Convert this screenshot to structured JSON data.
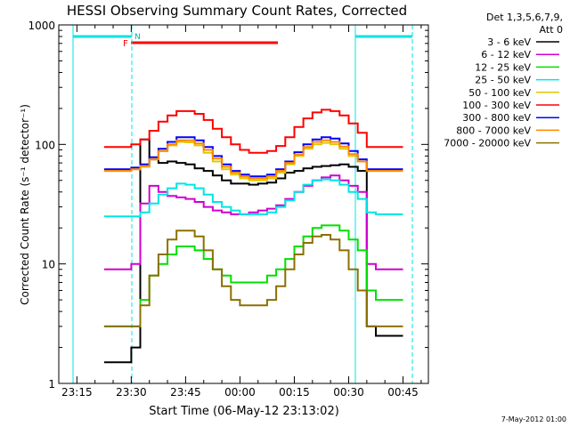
{
  "chart_data": {
    "type": "line",
    "title": "HESSI Observing Summary Count Rates, Corrected",
    "xlabel": "Start Time (06-May-12 23:13:02)",
    "ylabel": "Corrected Count Rate (s⁻¹ detector⁻¹)",
    "y_scale": "log",
    "ylim": [
      1,
      1000
    ],
    "xlim_minutes_after_2315": [
      -5,
      97
    ],
    "x_ticks": [
      "23:15",
      "23:30",
      "23:45",
      "00:00",
      "00:15",
      "00:30",
      "00:45"
    ],
    "y_ticks": [
      "1",
      "10",
      "100",
      "1000"
    ],
    "legend_header": [
      "Det 1,3,5,6,7,9,",
      "Att 0"
    ],
    "footer": "7-May-2012 01:00",
    "flags": {
      "F_label": "F",
      "N_label": "N"
    },
    "x_minutes": [
      7.5,
      10,
      12.5,
      15,
      17.5,
      20,
      22.5,
      25,
      27.5,
      30,
      32.5,
      35,
      37.5,
      40,
      42.5,
      45,
      47.5,
      50,
      52.5,
      55,
      57.5,
      60,
      62.5,
      65,
      67.5,
      70,
      72.5,
      75,
      77.5,
      80,
      82.5,
      85,
      87.5,
      90
    ],
    "series": [
      {
        "name": "3 - 6 keV",
        "color": "#000000",
        "values": [
          1.5,
          1.5,
          1.5,
          2,
          110,
          75,
          70,
          72,
          70,
          68,
          63,
          60,
          55,
          50,
          47,
          47,
          46,
          47,
          48,
          52,
          58,
          60,
          63,
          65,
          66,
          67,
          68,
          65,
          60,
          3,
          2.5,
          2.5,
          2.5,
          2.5
        ]
      },
      {
        "name": "6 - 12 keV",
        "color": "#d000d0",
        "values": [
          9,
          9,
          9,
          10,
          32,
          45,
          40,
          37,
          36,
          35,
          33,
          30,
          28,
          27,
          26,
          26,
          27,
          28,
          29,
          31,
          35,
          40,
          45,
          50,
          53,
          55,
          50,
          45,
          40,
          10,
          9,
          9,
          9,
          9
        ]
      },
      {
        "name": "12 - 25 keV",
        "color": "#00e000",
        "values": [
          3,
          3,
          3,
          3,
          5,
          8,
          10,
          12,
          14,
          14,
          13,
          11,
          9,
          8,
          7,
          7,
          7,
          7,
          8,
          9,
          11,
          14,
          17,
          20,
          21,
          21,
          19,
          16,
          13,
          6,
          5,
          5,
          5,
          5
        ]
      },
      {
        "name": "25 - 50 keV",
        "color": "#00e5e5",
        "values": [
          25,
          25,
          25,
          25,
          27,
          32,
          38,
          43,
          47,
          46,
          43,
          38,
          33,
          30,
          28,
          26,
          26,
          26,
          27,
          30,
          34,
          40,
          46,
          50,
          51,
          50,
          46,
          40,
          35,
          27,
          26,
          26,
          26,
          26
        ]
      },
      {
        "name": "50 - 100 keV",
        "color": "#e0c800",
        "values": [
          60,
          60,
          60,
          62,
          65,
          75,
          88,
          98,
          105,
          104,
          98,
          85,
          72,
          62,
          56,
          52,
          50,
          50,
          52,
          58,
          68,
          80,
          92,
          100,
          103,
          100,
          92,
          80,
          72,
          60,
          60,
          60,
          60,
          60
        ]
      },
      {
        "name": "100 - 300 keV",
        "color": "#ff0000",
        "values": [
          95,
          95,
          95,
          100,
          110,
          130,
          155,
          175,
          190,
          190,
          180,
          160,
          135,
          115,
          100,
          90,
          85,
          85,
          88,
          97,
          115,
          140,
          165,
          185,
          195,
          190,
          175,
          150,
          125,
          95,
          95,
          95,
          95,
          95
        ]
      },
      {
        "name": "300 - 800 keV",
        "color": "#0000ff",
        "values": [
          62,
          62,
          62,
          64,
          68,
          78,
          92,
          105,
          115,
          115,
          108,
          95,
          80,
          68,
          60,
          56,
          54,
          54,
          56,
          62,
          72,
          86,
          100,
          110,
          115,
          112,
          102,
          88,
          75,
          62,
          62,
          62,
          62,
          62
        ]
      },
      {
        "name": "800 - 7000 keV",
        "color": "#ff8800",
        "values": [
          60,
          60,
          60,
          62,
          66,
          75,
          88,
          100,
          108,
          108,
          102,
          90,
          76,
          65,
          58,
          54,
          52,
          52,
          54,
          60,
          70,
          82,
          95,
          105,
          108,
          105,
          96,
          83,
          72,
          60,
          60,
          60,
          60,
          60
        ]
      },
      {
        "name": "7000 - 20000 keV",
        "color": "#8b7000",
        "values": [
          3,
          3,
          3,
          3,
          4.5,
          8,
          12,
          16,
          19,
          19,
          17,
          13,
          9,
          6.5,
          5,
          4.5,
          4.5,
          4.5,
          5,
          6.5,
          9,
          12,
          15,
          17,
          17.5,
          16,
          13,
          9,
          6,
          3,
          3,
          3,
          3,
          3
        ]
      }
    ]
  }
}
